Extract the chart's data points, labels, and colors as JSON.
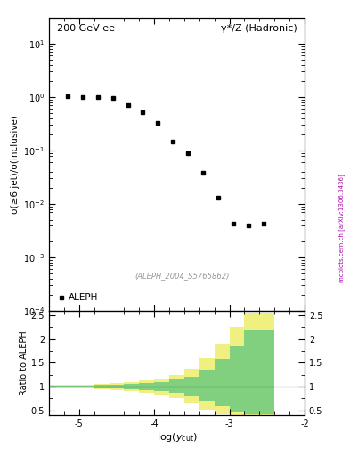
{
  "title_left": "200 GeV ee",
  "title_right": "γ*/Z (Hadronic)",
  "ylabel_main": "σ(≥6 jet)/σ(inclusive)",
  "ylabel_ratio": "Ratio to ALEPH",
  "xlabel": "log(y_{cut})",
  "watermark": "(ALEPH_2004_S5765862)",
  "side_label": "mcplots.cern.ch [arXiv:1306.3436]",
  "legend_label": "ALEPH",
  "data_x": [
    -5.15,
    -4.95,
    -4.75,
    -4.55,
    -4.35,
    -4.15,
    -3.95,
    -3.75,
    -3.55,
    -3.35,
    -3.15,
    -2.95,
    -2.75,
    -2.55
  ],
  "data_y": [
    1.02,
    1.01,
    1.0,
    0.97,
    0.72,
    0.53,
    0.33,
    0.145,
    0.088,
    0.038,
    0.013,
    0.0042,
    0.004,
    0.0042
  ],
  "xlim": [
    -5.4,
    -2.4
  ],
  "ylim_main": [
    0.0001,
    30
  ],
  "ylim_ratio": [
    0.4,
    2.6
  ],
  "ratio_bin_edges": [
    -5.4,
    -5.2,
    -5.0,
    -4.8,
    -4.6,
    -4.4,
    -4.2,
    -4.0,
    -3.8,
    -3.6,
    -3.4,
    -3.2,
    -3.0,
    -2.8,
    -2.6,
    -2.4
  ],
  "green_low": [
    0.98,
    0.98,
    0.98,
    0.97,
    0.96,
    0.95,
    0.93,
    0.9,
    0.86,
    0.8,
    0.7,
    0.58,
    0.45,
    0.42,
    0.42
  ],
  "green_high": [
    1.02,
    1.02,
    1.02,
    1.03,
    1.04,
    1.05,
    1.07,
    1.1,
    1.14,
    1.2,
    1.35,
    1.58,
    1.85,
    2.2,
    2.2
  ],
  "yellow_low": [
    0.96,
    0.96,
    0.96,
    0.95,
    0.93,
    0.9,
    0.87,
    0.83,
    0.76,
    0.65,
    0.52,
    0.42,
    0.38,
    0.38,
    0.38
  ],
  "yellow_high": [
    1.04,
    1.04,
    1.04,
    1.05,
    1.07,
    1.1,
    1.13,
    1.17,
    1.24,
    1.38,
    1.6,
    1.9,
    2.25,
    2.55,
    2.55
  ],
  "green_color": "#80d080",
  "yellow_color": "#f0f080",
  "data_color": "#000000",
  "marker": "s",
  "marker_size": 3.5,
  "fig_width": 3.93,
  "fig_height": 5.12,
  "dpi": 100
}
